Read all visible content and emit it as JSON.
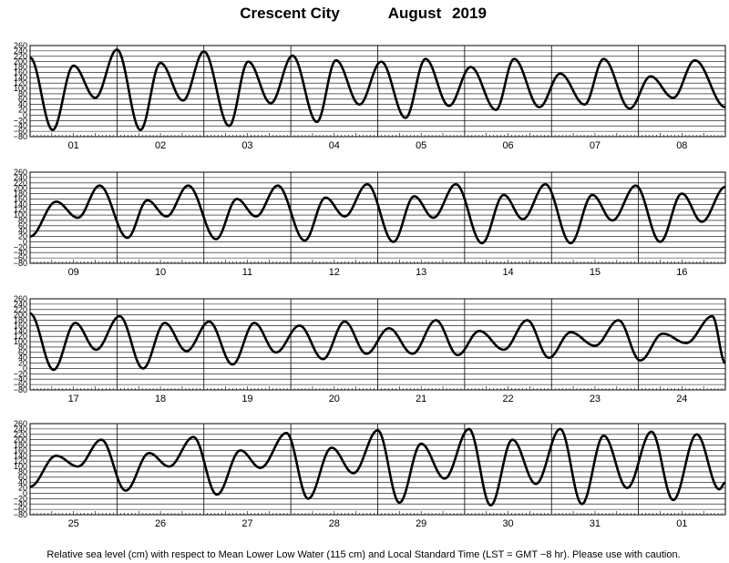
{
  "chart_data": {
    "type": "line",
    "title_station": "Crescent City",
    "title_month": "August",
    "title_year": "2019",
    "footer": "Relative sea level (cm) with respect to Mean Lower Low Water (115 cm) and Local Standard Time (LST = GMT −8 hr). Please use with caution.",
    "ylim": [
      -80,
      260
    ],
    "y_ticks": [
      260,
      240,
      220,
      200,
      180,
      160,
      140,
      120,
      100,
      80,
      60,
      40,
      20,
      0,
      -20,
      -40,
      -60,
      -80
    ],
    "grid": true,
    "panels": [
      {
        "days": [
          "01",
          "02",
          "03",
          "04",
          "05",
          "06",
          "07",
          "08"
        ],
        "extrema": [
          [
            0.0,
            215
          ],
          [
            0.26,
            -55
          ],
          [
            0.5,
            185
          ],
          [
            0.75,
            65
          ],
          [
            1.0,
            245
          ],
          [
            1.27,
            -55
          ],
          [
            1.5,
            195
          ],
          [
            1.76,
            55
          ],
          [
            2.0,
            238
          ],
          [
            2.29,
            -40
          ],
          [
            2.51,
            200
          ],
          [
            2.77,
            45
          ],
          [
            3.02,
            222
          ],
          [
            3.3,
            -25
          ],
          [
            3.52,
            205
          ],
          [
            3.79,
            40
          ],
          [
            4.04,
            200
          ],
          [
            4.32,
            -10
          ],
          [
            4.55,
            210
          ],
          [
            4.82,
            35
          ],
          [
            5.07,
            180
          ],
          [
            5.36,
            20
          ],
          [
            5.57,
            210
          ],
          [
            5.86,
            30
          ],
          [
            6.1,
            155
          ],
          [
            6.38,
            40
          ],
          [
            6.6,
            210
          ],
          [
            6.9,
            25
          ],
          [
            7.14,
            145
          ],
          [
            7.4,
            65
          ],
          [
            7.65,
            205
          ],
          [
            8.0,
            30
          ]
        ]
      },
      {
        "days": [
          "09",
          "10",
          "11",
          "12",
          "13",
          "14",
          "15",
          "16"
        ],
        "extrema": [
          [
            0.0,
            20
          ],
          [
            0.3,
            150
          ],
          [
            0.55,
            90
          ],
          [
            0.8,
            210
          ],
          [
            1.12,
            15
          ],
          [
            1.35,
            155
          ],
          [
            1.57,
            95
          ],
          [
            1.82,
            210
          ],
          [
            2.14,
            10
          ],
          [
            2.38,
            160
          ],
          [
            2.6,
            95
          ],
          [
            2.85,
            210
          ],
          [
            3.16,
            5
          ],
          [
            3.4,
            165
          ],
          [
            3.62,
            95
          ],
          [
            3.88,
            215
          ],
          [
            4.18,
            0
          ],
          [
            4.42,
            170
          ],
          [
            4.64,
            90
          ],
          [
            4.9,
            215
          ],
          [
            5.2,
            -5
          ],
          [
            5.45,
            175
          ],
          [
            5.67,
            85
          ],
          [
            5.93,
            215
          ],
          [
            6.22,
            -5
          ],
          [
            6.47,
            175
          ],
          [
            6.7,
            80
          ],
          [
            6.97,
            210
          ],
          [
            7.25,
            0
          ],
          [
            7.5,
            180
          ],
          [
            7.73,
            75
          ],
          [
            8.0,
            205
          ]
        ]
      },
      {
        "days": [
          "17",
          "18",
          "19",
          "20",
          "21",
          "22",
          "23",
          "24"
        ],
        "extrema": [
          [
            0.0,
            205
          ],
          [
            0.27,
            -5
          ],
          [
            0.52,
            170
          ],
          [
            0.76,
            70
          ],
          [
            1.03,
            195
          ],
          [
            1.3,
            0
          ],
          [
            1.55,
            170
          ],
          [
            1.8,
            65
          ],
          [
            2.06,
            175
          ],
          [
            2.33,
            15
          ],
          [
            2.58,
            170
          ],
          [
            2.83,
            60
          ],
          [
            3.1,
            160
          ],
          [
            3.37,
            35
          ],
          [
            3.62,
            175
          ],
          [
            3.87,
            55
          ],
          [
            4.13,
            150
          ],
          [
            4.4,
            55
          ],
          [
            4.67,
            180
          ],
          [
            4.92,
            50
          ],
          [
            5.17,
            140
          ],
          [
            5.45,
            70
          ],
          [
            5.72,
            180
          ],
          [
            5.97,
            40
          ],
          [
            6.22,
            135
          ],
          [
            6.5,
            85
          ],
          [
            6.77,
            180
          ],
          [
            7.02,
            30
          ],
          [
            7.28,
            130
          ],
          [
            7.55,
            95
          ],
          [
            7.85,
            195
          ],
          [
            8.0,
            20
          ]
        ]
      },
      {
        "days": [
          "25",
          "26",
          "27",
          "28",
          "29",
          "30",
          "31",
          "01"
        ],
        "extrema": [
          [
            0.0,
            25
          ],
          [
            0.3,
            140
          ],
          [
            0.55,
            100
          ],
          [
            0.82,
            200
          ],
          [
            1.1,
            10
          ],
          [
            1.37,
            150
          ],
          [
            1.6,
            100
          ],
          [
            1.88,
            210
          ],
          [
            2.15,
            -5
          ],
          [
            2.42,
            160
          ],
          [
            2.65,
            95
          ],
          [
            2.95,
            225
          ],
          [
            3.2,
            -20
          ],
          [
            3.47,
            170
          ],
          [
            3.72,
            75
          ],
          [
            4.0,
            235
          ],
          [
            4.25,
            -35
          ],
          [
            4.5,
            185
          ],
          [
            4.77,
            55
          ],
          [
            5.05,
            240
          ],
          [
            5.3,
            -45
          ],
          [
            5.55,
            200
          ],
          [
            5.82,
            35
          ],
          [
            6.1,
            240
          ],
          [
            6.35,
            -40
          ],
          [
            6.6,
            215
          ],
          [
            6.87,
            20
          ],
          [
            7.15,
            230
          ],
          [
            7.4,
            -25
          ],
          [
            7.67,
            220
          ],
          [
            7.93,
            15
          ],
          [
            8.0,
            40
          ]
        ]
      }
    ]
  }
}
